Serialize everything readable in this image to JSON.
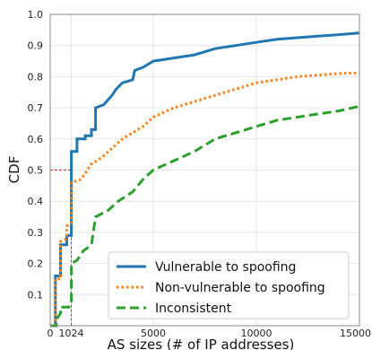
{
  "chart_data": {
    "type": "line",
    "xlabel": "AS sizes (# of IP addresses)",
    "ylabel": "CDF",
    "xlim": [
      0,
      15000
    ],
    "ylim": [
      0,
      1.0
    ],
    "x_ticks": [
      {
        "value": 0,
        "label": "0"
      },
      {
        "value": 1024,
        "label": "1024"
      },
      {
        "value": 5000,
        "label": "5000"
      },
      {
        "value": 10000,
        "label": "10000"
      },
      {
        "value": 15000,
        "label": "15000"
      }
    ],
    "y_ticks": [
      {
        "value": 0.1,
        "label": "0.1"
      },
      {
        "value": 0.2,
        "label": "0.2"
      },
      {
        "value": 0.3,
        "label": "0.3"
      },
      {
        "value": 0.4,
        "label": "0.4"
      },
      {
        "value": 0.5,
        "label": "0.5"
      },
      {
        "value": 0.6,
        "label": "0.6"
      },
      {
        "value": 0.7,
        "label": "0.7"
      },
      {
        "value": 0.8,
        "label": "0.8"
      },
      {
        "value": 0.9,
        "label": "0.9"
      },
      {
        "value": 1.0,
        "label": "1.0"
      }
    ],
    "grid": true,
    "legend_position": "bottom-right",
    "reference_lines": {
      "x": 1024,
      "y": 0.5,
      "color": "#d62728"
    },
    "series": [
      {
        "name": "Vulnerable to spoofing",
        "color": "#1f77b4",
        "style": "solid",
        "points": [
          [
            0,
            0
          ],
          [
            250,
            0
          ],
          [
            250,
            0.16
          ],
          [
            500,
            0.16
          ],
          [
            500,
            0.26
          ],
          [
            800,
            0.26
          ],
          [
            800,
            0.29
          ],
          [
            1024,
            0.29
          ],
          [
            1024,
            0.56
          ],
          [
            1300,
            0.56
          ],
          [
            1300,
            0.6
          ],
          [
            1700,
            0.6
          ],
          [
            1700,
            0.61
          ],
          [
            2000,
            0.61
          ],
          [
            2000,
            0.63
          ],
          [
            2200,
            0.63
          ],
          [
            2200,
            0.7
          ],
          [
            2600,
            0.71
          ],
          [
            3000,
            0.74
          ],
          [
            3200,
            0.76
          ],
          [
            3500,
            0.78
          ],
          [
            4000,
            0.79
          ],
          [
            4100,
            0.82
          ],
          [
            4500,
            0.83
          ],
          [
            5000,
            0.85
          ],
          [
            6000,
            0.86
          ],
          [
            7000,
            0.87
          ],
          [
            8000,
            0.89
          ],
          [
            9000,
            0.9
          ],
          [
            10000,
            0.91
          ],
          [
            11000,
            0.92
          ],
          [
            12000,
            0.925
          ],
          [
            13000,
            0.93
          ],
          [
            14000,
            0.935
          ],
          [
            15000,
            0.94
          ]
        ]
      },
      {
        "name": "Non-vulnerable to spoofing",
        "color": "#ff7f0e",
        "style": "dotted",
        "points": [
          [
            0,
            0
          ],
          [
            250,
            0
          ],
          [
            250,
            0.15
          ],
          [
            500,
            0.15
          ],
          [
            500,
            0.27
          ],
          [
            800,
            0.28
          ],
          [
            800,
            0.32
          ],
          [
            1024,
            0.33
          ],
          [
            1024,
            0.46
          ],
          [
            1500,
            0.47
          ],
          [
            1800,
            0.5
          ],
          [
            2000,
            0.52
          ],
          [
            2500,
            0.54
          ],
          [
            3000,
            0.57
          ],
          [
            3500,
            0.6
          ],
          [
            4000,
            0.62
          ],
          [
            4500,
            0.64
          ],
          [
            5000,
            0.67
          ],
          [
            6000,
            0.7
          ],
          [
            7000,
            0.72
          ],
          [
            8000,
            0.74
          ],
          [
            9000,
            0.76
          ],
          [
            10000,
            0.78
          ],
          [
            11000,
            0.79
          ],
          [
            12000,
            0.8
          ],
          [
            13000,
            0.805
          ],
          [
            14000,
            0.81
          ],
          [
            15000,
            0.812
          ]
        ]
      },
      {
        "name": "Inconsistent",
        "color": "#2ca02c",
        "style": "dashed",
        "points": [
          [
            0,
            0
          ],
          [
            300,
            0
          ],
          [
            300,
            0.02
          ],
          [
            500,
            0.04
          ],
          [
            500,
            0.06
          ],
          [
            900,
            0.06
          ],
          [
            1024,
            0.07
          ],
          [
            1024,
            0.2
          ],
          [
            1300,
            0.21
          ],
          [
            1600,
            0.24
          ],
          [
            2000,
            0.26
          ],
          [
            2200,
            0.35
          ],
          [
            2800,
            0.37
          ],
          [
            3300,
            0.4
          ],
          [
            4000,
            0.43
          ],
          [
            4500,
            0.47
          ],
          [
            5000,
            0.5
          ],
          [
            6000,
            0.53
          ],
          [
            7000,
            0.56
          ],
          [
            8000,
            0.6
          ],
          [
            9000,
            0.62
          ],
          [
            10000,
            0.64
          ],
          [
            11000,
            0.66
          ],
          [
            12000,
            0.67
          ],
          [
            13000,
            0.68
          ],
          [
            14000,
            0.69
          ],
          [
            15000,
            0.705
          ]
        ]
      }
    ]
  }
}
